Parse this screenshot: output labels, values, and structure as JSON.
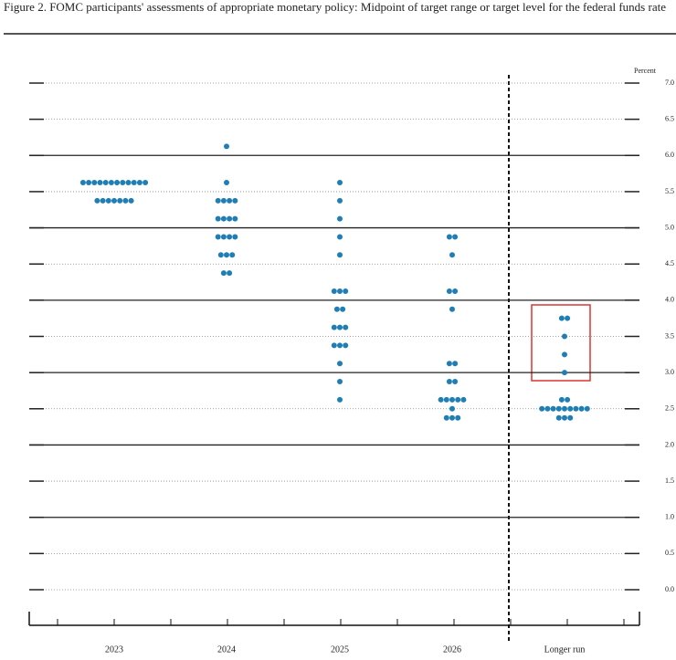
{
  "chart_data": {
    "type": "dot",
    "title": "Figure 2. FOMC participants' assessments of appropriate monetary policy: Midpoint of target range or target level for the federal funds rate",
    "y_label": "Percent",
    "color": "#1f7fb5",
    "categories": [
      "2023",
      "2024",
      "2025",
      "2026",
      "Longer run"
    ],
    "values": [
      [
        5.625,
        5.625,
        5.625,
        5.625,
        5.625,
        5.625,
        5.625,
        5.625,
        5.625,
        5.625,
        5.625,
        5.625,
        5.375,
        5.375,
        5.375,
        5.375,
        5.375,
        5.375,
        5.375
      ],
      [
        6.125,
        5.625,
        5.375,
        5.375,
        5.375,
        5.375,
        5.125,
        5.125,
        5.125,
        5.125,
        4.875,
        4.875,
        4.875,
        4.875,
        4.625,
        4.625,
        4.625,
        4.375,
        4.375
      ],
      [
        5.625,
        5.375,
        5.125,
        4.875,
        4.625,
        4.125,
        4.125,
        4.125,
        3.875,
        3.875,
        3.625,
        3.625,
        3.625,
        3.375,
        3.375,
        3.375,
        3.125,
        2.875,
        2.625
      ],
      [
        4.875,
        4.875,
        4.625,
        4.125,
        4.125,
        3.875,
        3.125,
        3.125,
        2.875,
        2.875,
        2.625,
        2.625,
        2.625,
        2.625,
        2.625,
        2.5,
        2.375,
        2.375,
        2.375
      ],
      [
        3.75,
        3.75,
        3.5,
        3.25,
        3.0,
        2.625,
        2.625,
        2.5,
        2.5,
        2.5,
        2.5,
        2.5,
        2.5,
        2.5,
        2.5,
        2.5,
        2.375,
        2.375,
        2.375
      ]
    ],
    "ylim": [
      0,
      7
    ],
    "yticks": [
      {
        "value": 0,
        "label": "0.0"
      },
      0.5,
      {
        "value": 1,
        "label": "1.0"
      },
      1.5,
      {
        "value": 2,
        "label": "2.0"
      },
      2.5,
      {
        "value": 3,
        "label": "3.0"
      },
      3.5,
      {
        "value": 4,
        "label": "4.0"
      },
      4.5,
      {
        "value": 5,
        "label": "5.0"
      },
      5.5,
      {
        "value": 6,
        "label": "6.0"
      },
      6.5,
      {
        "value": 7,
        "label": "7.0"
      }
    ],
    "grid": true
  }
}
